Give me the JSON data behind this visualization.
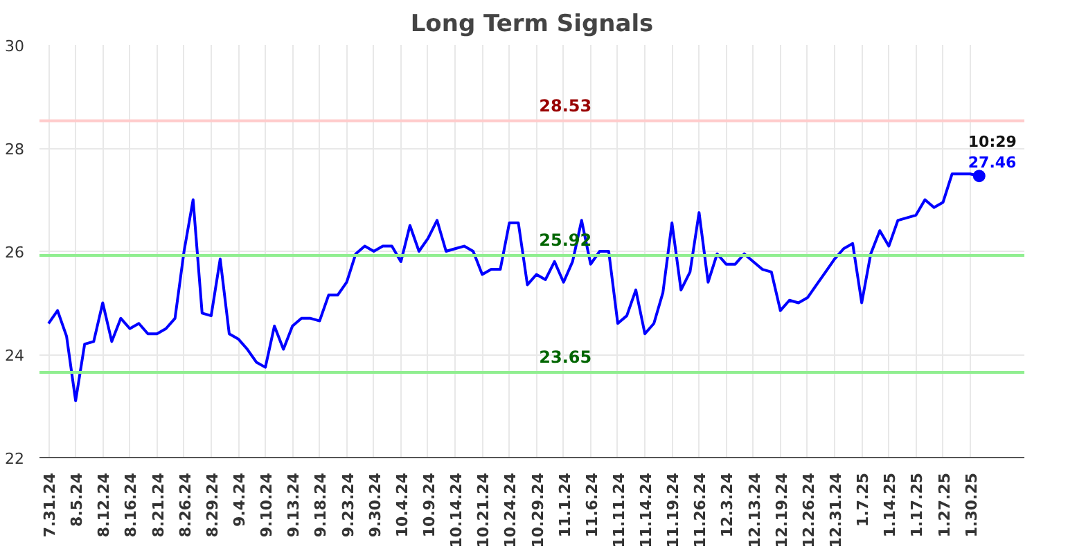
{
  "chart_data": {
    "type": "line",
    "title": "Long Term Signals",
    "categories": [
      "7.31.24",
      null,
      null,
      "8.5.24",
      null,
      null,
      "8.12.24",
      null,
      null,
      "8.16.24",
      null,
      null,
      "8.21.24",
      null,
      null,
      "8.26.24",
      null,
      null,
      "8.29.24",
      null,
      null,
      "9.4.24",
      null,
      null,
      "9.10.24",
      null,
      null,
      "9.13.24",
      null,
      null,
      "9.18.24",
      null,
      null,
      "9.23.24",
      null,
      null,
      "9.30.24",
      null,
      null,
      "10.4.24",
      null,
      null,
      "10.9.24",
      null,
      null,
      "10.14.24",
      null,
      null,
      "10.21.24",
      null,
      null,
      "10.24.24",
      null,
      null,
      "10.29.24",
      null,
      null,
      "11.1.24",
      null,
      null,
      "11.6.24",
      null,
      null,
      "11.11.24",
      null,
      null,
      "11.14.24",
      null,
      null,
      "11.19.24",
      null,
      null,
      "11.26.24",
      null,
      null,
      "12.3.24",
      null,
      null,
      "12.13.24",
      null,
      null,
      "12.19.24",
      null,
      null,
      "12.26.24",
      null,
      null,
      "12.31.24",
      null,
      null,
      "1.7.25",
      null,
      null,
      "1.14.25",
      null,
      null,
      "1.17.25",
      null,
      null,
      "1.27.25",
      null,
      null,
      "1.30.25",
      null
    ],
    "series": [
      {
        "color": "#0000ff",
        "values": [
          24.6,
          24.85,
          24.35,
          23.1,
          24.2,
          24.25,
          25.0,
          24.25,
          24.7,
          24.5,
          24.6,
          24.4,
          24.4,
          24.5,
          24.7,
          26.0,
          27.0,
          24.8,
          24.75,
          25.85,
          24.4,
          24.3,
          24.1,
          23.85,
          23.75,
          24.55,
          24.1,
          24.55,
          24.7,
          24.7,
          24.65,
          25.15,
          25.15,
          25.4,
          25.95,
          26.1,
          26.0,
          26.1,
          26.1,
          25.8,
          26.5,
          26.0,
          26.25,
          26.6,
          26.0,
          26.05,
          26.1,
          26.0,
          25.55,
          25.65,
          25.65,
          26.55,
          26.55,
          25.35,
          25.55,
          25.45,
          25.8,
          25.4,
          25.8,
          26.6,
          25.75,
          26.0,
          26.0,
          24.6,
          24.75,
          25.25,
          24.4,
          24.6,
          25.2,
          26.55,
          25.25,
          25.6,
          26.75,
          25.4,
          25.95,
          25.75,
          25.75,
          25.95,
          25.8,
          25.65,
          25.6,
          24.85,
          25.05,
          25.0,
          25.1,
          25.35,
          25.6,
          25.85,
          26.05,
          26.15,
          25.0,
          25.95,
          26.4,
          26.1,
          26.6,
          26.65,
          26.7,
          27.0,
          26.85,
          26.95,
          27.5,
          27.5,
          27.5,
          27.46
        ],
        "value_labels": [
          null,
          null,
          null,
          null,
          null,
          null,
          null,
          null,
          null,
          null,
          null,
          null,
          null,
          null,
          null,
          null,
          null,
          null,
          null,
          null,
          null,
          null,
          null,
          null,
          null,
          null,
          null,
          null,
          null,
          null,
          null,
          null,
          null,
          null,
          null,
          null,
          null,
          null,
          null,
          null,
          null,
          null,
          null,
          null,
          null,
          null,
          null,
          null,
          null,
          null,
          null,
          null,
          null,
          null,
          null,
          null,
          null,
          null,
          null,
          null,
          null,
          null,
          null,
          null,
          null,
          null,
          null,
          null,
          null,
          null,
          null,
          null,
          null,
          null,
          null,
          null,
          null,
          null,
          null,
          null,
          null,
          null,
          null,
          null,
          null,
          null,
          null,
          null,
          null,
          null,
          null,
          null,
          null,
          null,
          null,
          null,
          null,
          null,
          null,
          null,
          null,
          null,
          null,
          "27.46"
        ]
      }
    ],
    "annotations": [
      "10:29"
    ],
    "ylim": [
      22,
      30
    ],
    "yticks": [
      22,
      24,
      26,
      28,
      30
    ],
    "grid": true,
    "line_style": "solid",
    "ref_lines": [
      {
        "axis": "y",
        "value": 28.53,
        "label": "28.53",
        "color": "#ffcccc"
      },
      {
        "axis": "y",
        "value": 25.92,
        "label": "25.92",
        "color": "#90ee90"
      },
      {
        "axis": "y",
        "value": 23.65,
        "label": "23.65",
        "color": "#90ee90"
      }
    ]
  }
}
